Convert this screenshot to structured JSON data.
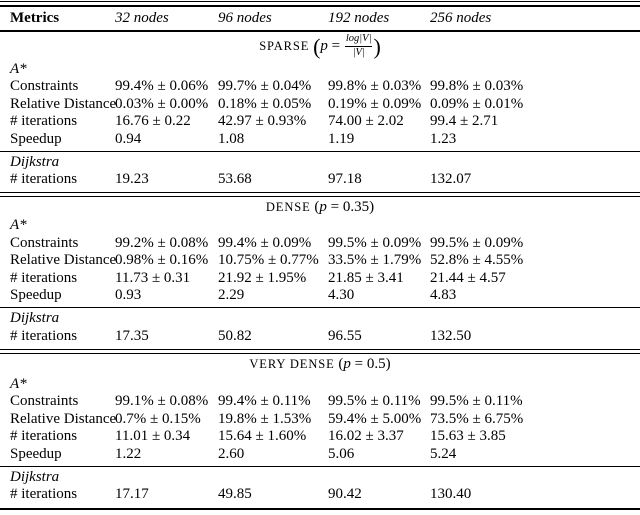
{
  "table": {
    "columns": [
      "Metrics",
      "32 nodes",
      "96 nodes",
      "192 nodes",
      "256 nodes"
    ],
    "sections": [
      {
        "id": "sparse",
        "heading": {
          "smallcaps": "SPARSE",
          "var": "p",
          "eq": "=",
          "frac_num": "log|V|",
          "frac_den": "|V|"
        },
        "groups": [
          {
            "label": "A*",
            "rows": [
              {
                "label": "Constraints",
                "values": [
                  "99.4% ± 0.06%",
                  "99.7% ± 0.04%",
                  "99.8% ± 0.03%",
                  "99.8% ± 0.03%"
                ]
              },
              {
                "label": "Relative Distance",
                "values": [
                  "0.03% ± 0.00%",
                  "0.18% ± 0.05%",
                  "0.19% ± 0.09%",
                  "0.09% ± 0.01%"
                ]
              },
              {
                "label": "# iterations",
                "values": [
                  "16.76 ± 0.22",
                  "42.97 ± 0.93%",
                  "74.00 ± 2.02",
                  "99.4 ± 2.71"
                ]
              },
              {
                "label": "Speedup",
                "values": [
                  "0.94",
                  "1.08",
                  "1.19",
                  "1.23"
                ]
              }
            ]
          },
          {
            "label": "Dijkstra",
            "rows": [
              {
                "label": "# iterations",
                "values": [
                  "19.23",
                  "53.68",
                  "97.18",
                  "132.07"
                ]
              }
            ]
          }
        ]
      },
      {
        "id": "dense",
        "heading": {
          "smallcaps": "DENSE",
          "var": "p",
          "eq": "=",
          "value": "0.35"
        },
        "groups": [
          {
            "label": "A*",
            "rows": [
              {
                "label": "Constraints",
                "values": [
                  "99.2% ± 0.08%",
                  "99.4% ± 0.09%",
                  "99.5% ± 0.09%",
                  "99.5% ± 0.09%"
                ]
              },
              {
                "label": "Relative Distance",
                "values": [
                  "0.98% ± 0.16%",
                  "10.75% ± 0.77%",
                  "33.5% ± 1.79%",
                  "52.8% ± 4.55%"
                ]
              },
              {
                "label": "# iterations",
                "values": [
                  "11.73 ± 0.31",
                  "21.92 ± 1.95%",
                  "21.85 ± 3.41",
                  "21.44 ± 4.57"
                ]
              },
              {
                "label": "Speedup",
                "values": [
                  "0.93",
                  "2.29",
                  "4.30",
                  "4.83"
                ]
              }
            ]
          },
          {
            "label": "Dijkstra",
            "rows": [
              {
                "label": "# iterations",
                "values": [
                  "17.35",
                  "50.82",
                  "96.55",
                  "132.50"
                ]
              }
            ]
          }
        ]
      },
      {
        "id": "very-dense",
        "heading": {
          "smallcaps": "VERY DENSE",
          "var": "p",
          "eq": "=",
          "value": "0.5"
        },
        "groups": [
          {
            "label": "A*",
            "rows": [
              {
                "label": "Constraints",
                "values": [
                  "99.1% ± 0.08%",
                  "99.4% ± 0.11%",
                  "99.5% ± 0.11%",
                  "99.5% ± 0.11%"
                ]
              },
              {
                "label": "Relative Distance",
                "values": [
                  "0.7% ± 0.15%",
                  "19.8% ± 1.53%",
                  "59.4% ± 5.00%",
                  "73.5% ± 6.75%"
                ]
              },
              {
                "label": "# iterations",
                "values": [
                  "11.01 ± 0.34",
                  "15.64 ± 1.60%",
                  "16.02 ± 3.37",
                  "15.63 ± 3.85"
                ]
              },
              {
                "label": "Speedup",
                "values": [
                  "1.22",
                  "2.60",
                  "5.06",
                  "5.24"
                ]
              }
            ]
          },
          {
            "label": "Dijkstra",
            "rows": [
              {
                "label": "# iterations",
                "values": [
                  "17.17",
                  "49.85",
                  "90.42",
                  "130.40"
                ]
              }
            ]
          }
        ]
      }
    ]
  }
}
